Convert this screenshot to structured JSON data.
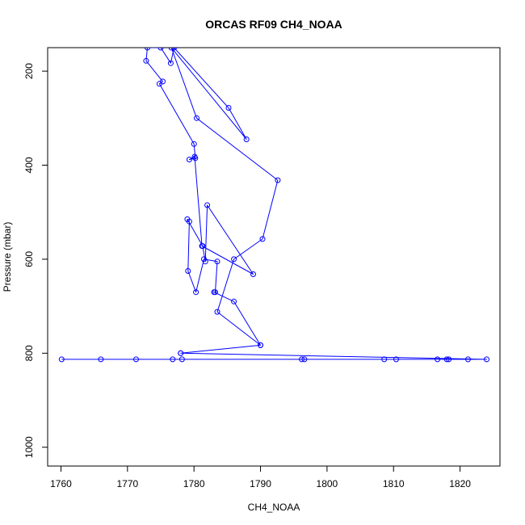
{
  "chart_data": {
    "type": "line",
    "title": "ORCAS RF09 CH4_NOAA",
    "xlabel": "CH4_NOAA",
    "ylabel": "Pressure (mbar)",
    "xlim": [
      1758,
      1826
    ],
    "ylim": [
      1040,
      150
    ],
    "y_reversed": true,
    "x_ticks": [
      1760,
      1770,
      1780,
      1790,
      1800,
      1810,
      1820
    ],
    "y_ticks": [
      200,
      400,
      600,
      800,
      1000
    ],
    "line_color": "#0000ff",
    "marker": "open-circle",
    "grid": false,
    "series": [
      {
        "x": [
          1760.1,
          1766.0,
          1771.3,
          1776.8,
          1778.2,
          1796.2,
          1796.6,
          1808.6,
          1810.4,
          1816.6,
          1818.0,
          1818.3,
          1821.2,
          1824.0,
          1778.0,
          1790.0,
          1786.0,
          1783.0,
          1783.2,
          1783.5,
          1781.5,
          1780.3,
          1779.1,
          1779.3,
          1779.0,
          1781.3,
          1781.7,
          1782.0,
          1788.9,
          1781.2,
          1780.1,
          1779.3,
          1780.2,
          1780.0,
          1774.8,
          1775.3,
          1772.8,
          1773.0,
          1775.0,
          1776.5,
          1777.0,
          1785.2,
          1787.9,
          1776.6,
          1780.4,
          1792.6,
          1790.3,
          1786.0,
          1783.5,
          1790.0,
          1778.0
        ],
        "y": [
          813,
          813,
          813,
          813,
          813,
          813,
          813,
          813,
          813,
          813,
          813,
          813,
          813,
          813,
          800,
          783,
          690,
          670,
          670,
          605,
          600,
          670,
          625,
          520,
          515,
          572,
          605,
          485,
          632,
          572,
          382,
          388,
          385,
          355,
          227,
          222,
          178,
          150,
          150,
          183,
          150,
          278,
          345,
          150,
          300,
          432,
          557,
          600,
          712,
          783,
          800
        ]
      }
    ]
  }
}
